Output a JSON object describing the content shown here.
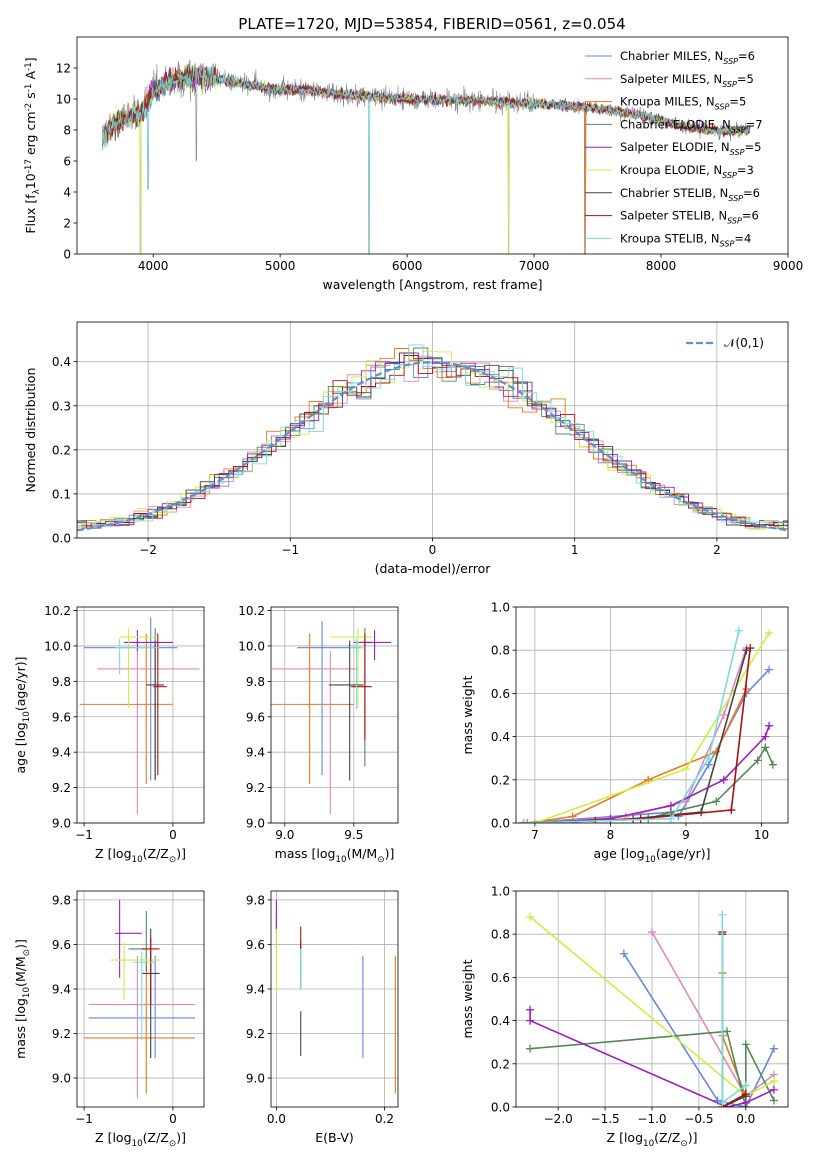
{
  "title": "PLATE=1720, MJD=53854, FIBERID=0561, z=0.054",
  "colors": [
    "#6688dd",
    "#e088bb",
    "#e87820",
    "#558855",
    "#9922bb",
    "#ccee44",
    "#444444",
    "#aa1111",
    "#77dddd"
  ],
  "series_names": [
    "Chabrier MILES, N$_{SSP}$=6",
    "Salpeter MILES, N$_{SSP}$=5",
    "Kroupa MILES, N$_{SSP}$=5",
    "Chabrier ELODIE, N$_{SSP}$=7",
    "Salpeter ELODIE, N$_{SSP}$=5",
    "Kroupa ELODIE, N$_{SSP}$=3",
    "Chabrier STELIB, N$_{SSP}$=6",
    "Salpeter STELIB, N$_{SSP}$=6",
    "Kroupa STELIB, N$_{SSP}$=4"
  ],
  "chart_data": [
    {
      "id": "spectrum",
      "type": "line",
      "title": "PLATE=1720, MJD=53854, FIBERID=0561, z=0.054",
      "xlabel": "wavelength [Angstrom, rest frame]",
      "ylabel": "Flux [f$_\\lambda$10$^{-17}$ erg cm$^{-2}$ s$^{-1}$ A$^{-1}$]",
      "xlim": [
        3400,
        9000
      ],
      "ylim": [
        0,
        14
      ],
      "xticks": [
        4000,
        5000,
        6000,
        7000,
        8000,
        9000
      ],
      "yticks": [
        0,
        2,
        4,
        6,
        8,
        10,
        12
      ],
      "grid": false,
      "legend": "upper right",
      "data_wavelength_range": [
        3600,
        8700
      ],
      "continuum": [
        [
          3600,
          7.5
        ],
        [
          3700,
          8.4
        ],
        [
          3800,
          8.9
        ],
        [
          3900,
          9.0
        ],
        [
          4000,
          10.4
        ],
        [
          4100,
          11.0
        ],
        [
          4200,
          11.3
        ],
        [
          4400,
          11.5
        ],
        [
          4700,
          11.0
        ],
        [
          5000,
          10.6
        ],
        [
          5200,
          10.6
        ],
        [
          5500,
          10.3
        ],
        [
          6000,
          10.0
        ],
        [
          6500,
          9.9
        ],
        [
          7000,
          9.7
        ],
        [
          7400,
          9.5
        ],
        [
          7800,
          9.0
        ],
        [
          8200,
          8.2
        ],
        [
          8500,
          7.9
        ],
        [
          8700,
          8.0
        ]
      ],
      "dips": [
        [
          3900,
          0
        ],
        [
          3960,
          4.2
        ],
        [
          4340,
          6.0
        ],
        [
          5700,
          0
        ],
        [
          6800,
          0
        ],
        [
          7400,
          0
        ]
      ]
    },
    {
      "id": "residuals",
      "type": "histogram",
      "xlabel": "(data-model)/error",
      "ylabel": "Normed distribution",
      "xlim": [
        -2.5,
        2.5
      ],
      "ylim": [
        0,
        0.49
      ],
      "xticks": [
        -2,
        -1,
        0,
        1,
        2
      ],
      "yticks": [
        0.0,
        0.1,
        0.2,
        0.3,
        0.4
      ],
      "grid": true,
      "legend": "upper right",
      "reference_label": "$\\mathcal{N}(0,1)$",
      "bin_width": 0.1
    },
    {
      "id": "age-vs-Z",
      "type": "errorbar",
      "xlabel": "Z [log$_{10}$(Z/Z$_\\odot$)]",
      "ylabel": "age  [log$_{10}$(age/yr)]",
      "xlim": [
        -1.08,
        0.35
      ],
      "ylim": [
        9.0,
        10.22
      ],
      "xticks": [
        -1,
        0
      ],
      "yticks": [
        9.0,
        9.2,
        9.4,
        9.6,
        9.8,
        10.0,
        10.2
      ],
      "grid": true,
      "points": [
        {
          "x": -0.25,
          "xerr": [
            0.75,
            0.3
          ],
          "y": 9.99,
          "yerr": [
            0.75,
            0.17
          ]
        },
        {
          "x": -0.4,
          "xerr": [
            0.45,
            0.7
          ],
          "y": 9.87,
          "yerr": [
            0.82,
            0.1
          ]
        },
        {
          "x": -0.3,
          "xerr": [
            0.75,
            0.3
          ],
          "y": 9.67,
          "yerr": [
            0.45,
            0.4
          ]
        },
        {
          "x": -0.2,
          "xerr": [
            0.05,
            0.03
          ],
          "y": 10.02,
          "yerr": [
            0.77,
            0.08
          ]
        },
        {
          "x": -0.4,
          "xerr": [
            0.15,
            0.4
          ],
          "y": 10.02,
          "yerr": [
            0.05,
            0.07
          ]
        },
        {
          "x": -0.5,
          "xerr": [
            0.1,
            0.3
          ],
          "y": 10.05,
          "yerr": [
            0.4,
            0.05
          ]
        },
        {
          "x": -0.2,
          "xerr": [
            0.1,
            0.1
          ],
          "y": 9.78,
          "yerr": [
            0.54,
            0.25
          ]
        },
        {
          "x": -0.17,
          "xerr": [
            0.05,
            0.1
          ],
          "y": 9.77,
          "yerr": [
            0.5,
            0.3
          ]
        },
        {
          "x": -0.6,
          "xerr": [
            0.05,
            0.45
          ],
          "y": 9.99,
          "yerr": [
            0.15,
            0.05
          ]
        }
      ]
    },
    {
      "id": "age-vs-mass",
      "type": "errorbar",
      "xlabel": "mass [log$_{10}$(M/M$_\\odot$)]",
      "ylabel": "",
      "xlim": [
        8.9,
        9.82
      ],
      "ylim": [
        9.0,
        10.22
      ],
      "xticks": [
        9.0,
        9.5
      ],
      "yticks": [
        9.0,
        9.2,
        9.4,
        9.6,
        9.8,
        10.0,
        10.2
      ],
      "grid": true,
      "points": [
        {
          "x": 9.27,
          "xerr": [
            0.18,
            0.28
          ],
          "y": 9.99,
          "yerr": [
            0.72,
            0.15
          ]
        },
        {
          "x": 9.33,
          "xerr": [
            0.42,
            0.2
          ],
          "y": 9.87,
          "yerr": [
            0.82,
            0.1
          ]
        },
        {
          "x": 9.18,
          "xerr": [
            0.28,
            0.32
          ],
          "y": 9.67,
          "yerr": [
            0.45,
            0.4
          ]
        },
        {
          "x": 9.58,
          "xerr": [
            0.05,
            0.05
          ],
          "y": 10.02,
          "yerr": [
            0.7,
            0.08
          ]
        },
        {
          "x": 9.65,
          "xerr": [
            0.15,
            0.12
          ],
          "y": 10.02,
          "yerr": [
            0.1,
            0.07
          ]
        },
        {
          "x": 9.53,
          "xerr": [
            0.2,
            0.1
          ],
          "y": 10.05,
          "yerr": [
            0.4,
            0.05
          ]
        },
        {
          "x": 9.47,
          "xerr": [
            0.15,
            0.1
          ],
          "y": 9.78,
          "yerr": [
            0.54,
            0.25
          ]
        },
        {
          "x": 9.58,
          "xerr": [
            0.1,
            0.05
          ],
          "y": 9.77,
          "yerr": [
            0.3,
            0.3
          ]
        },
        {
          "x": 9.52,
          "xerr": [
            0.05,
            0.05
          ],
          "y": 9.99,
          "yerr": [
            0.35,
            0.05
          ]
        }
      ]
    },
    {
      "id": "massweight-vs-age",
      "type": "line",
      "xlabel": "age  [log$_{10}$(age/yr)]",
      "ylabel": "mass weight",
      "xlim": [
        6.75,
        10.35
      ],
      "ylim": [
        0,
        1.0
      ],
      "xticks": [
        7,
        8,
        9,
        10
      ],
      "yticks": [
        0.0,
        0.2,
        0.4,
        0.6,
        0.8,
        1.0
      ],
      "grid": true,
      "series": [
        [
          [
            6.85,
            0.0
          ],
          [
            8.8,
            0.05
          ],
          [
            8.9,
            0.03
          ],
          [
            9.3,
            0.27
          ],
          [
            9.8,
            0.6
          ],
          [
            10.1,
            0.71
          ]
        ],
        [
          [
            7.0,
            0.0
          ],
          [
            8.2,
            0.03
          ],
          [
            9.0,
            0.1
          ],
          [
            9.5,
            0.5
          ],
          [
            9.8,
            0.81
          ]
        ],
        [
          [
            6.9,
            0.0
          ],
          [
            7.5,
            0.03
          ],
          [
            8.5,
            0.2
          ],
          [
            9.4,
            0.33
          ],
          [
            9.8,
            0.62
          ]
        ],
        [
          [
            7.0,
            0.0
          ],
          [
            8.5,
            0.02
          ],
          [
            8.8,
            0.05
          ],
          [
            9.4,
            0.1
          ],
          [
            9.95,
            0.29
          ],
          [
            10.05,
            0.35
          ],
          [
            10.15,
            0.27
          ]
        ],
        [
          [
            7.0,
            0.0
          ],
          [
            8.0,
            0.02
          ],
          [
            8.8,
            0.08
          ],
          [
            9.5,
            0.2
          ],
          [
            10.05,
            0.4
          ],
          [
            10.1,
            0.45
          ]
        ],
        [
          [
            7.0,
            0.0
          ],
          [
            9.0,
            0.25
          ],
          [
            10.1,
            0.88
          ]
        ],
        [
          [
            6.85,
            0.0
          ],
          [
            7.8,
            0.01
          ],
          [
            8.3,
            0.02
          ],
          [
            9.2,
            0.05
          ],
          [
            9.8,
            0.8
          ]
        ],
        [
          [
            6.85,
            0.0
          ],
          [
            7.8,
            0.01
          ],
          [
            8.4,
            0.02
          ],
          [
            9.6,
            0.06
          ],
          [
            9.85,
            0.81
          ]
        ],
        [
          [
            6.85,
            0.0
          ],
          [
            8.8,
            0.02
          ],
          [
            9.3,
            0.3
          ],
          [
            9.7,
            0.89
          ]
        ]
      ]
    },
    {
      "id": "mass-vs-Z",
      "type": "errorbar",
      "xlabel": "Z [log$_{10}$(Z/Z$_\\odot$)]",
      "ylabel": "mass [log$_{10}$(M/M$_\\odot$)]",
      "xlim": [
        -1.08,
        0.35
      ],
      "ylim": [
        8.87,
        9.84
      ],
      "xticks": [
        -1,
        0
      ],
      "yticks": [
        9.0,
        9.2,
        9.4,
        9.6,
        9.8
      ],
      "grid": true,
      "points": [
        {
          "x": -0.2,
          "xerr": [
            0.75,
            0.45
          ],
          "y": 9.27,
          "yerr": [
            0.18,
            0.28
          ]
        },
        {
          "x": -0.4,
          "xerr": [
            0.55,
            0.65
          ],
          "y": 9.33,
          "yerr": [
            0.42,
            0.22
          ]
        },
        {
          "x": -0.3,
          "xerr": [
            0.7,
            0.55
          ],
          "y": 9.18,
          "yerr": [
            0.25,
            0.35
          ]
        },
        {
          "x": -0.3,
          "xerr": [
            0.2,
            0.1
          ],
          "y": 9.58,
          "yerr": [
            0.1,
            0.17
          ]
        },
        {
          "x": -0.6,
          "xerr": [
            0.05,
            0.25
          ],
          "y": 9.65,
          "yerr": [
            0.2,
            0.15
          ]
        },
        {
          "x": -0.55,
          "xerr": [
            0.15,
            0.4
          ],
          "y": 9.53,
          "yerr": [
            0.18,
            0.08
          ]
        },
        {
          "x": -0.25,
          "xerr": [
            0.1,
            0.1
          ],
          "y": 9.47,
          "yerr": [
            0.38,
            0.2
          ]
        },
        {
          "x": -0.25,
          "xerr": [
            0.1,
            0.1
          ],
          "y": 9.58,
          "yerr": [
            0.25,
            0.05
          ]
        },
        {
          "x": -0.35,
          "xerr": [
            0.1,
            0.15
          ],
          "y": 9.52,
          "yerr": [
            0.35,
            0.05
          ]
        }
      ]
    },
    {
      "id": "mass-vs-EBV",
      "type": "errorbar",
      "xlabel": "E(B-V)",
      "ylabel": "",
      "xlim": [
        -0.01,
        0.225
      ],
      "ylim": [
        8.87,
        9.84
      ],
      "xticks": [
        0.0,
        0.2
      ],
      "yticks": [
        9.0,
        9.2,
        9.4,
        9.6,
        9.8
      ],
      "grid": true,
      "points": [
        {
          "x": 0.16,
          "y": 9.32,
          "yerr": [
            0.23,
            0.23
          ]
        },
        {
          "x": 0.0,
          "y": 9.65,
          "yerr": [
            0.08,
            0.1
          ]
        },
        {
          "x": 0.22,
          "y": 9.18,
          "yerr": [
            0.25,
            0.37
          ]
        },
        {
          "x": 0.045,
          "y": 9.52,
          "yerr": [
            0.12,
            0.1
          ]
        },
        {
          "x": 0.0,
          "y": 9.7,
          "yerr": [
            0.05,
            0.1
          ]
        },
        {
          "x": 0.0,
          "y": 9.5,
          "yerr": [
            0.12,
            0.17
          ]
        },
        {
          "x": 0.045,
          "y": 9.3,
          "yerr": [
            0.2,
            0.0
          ]
        },
        {
          "x": 0.045,
          "y": 9.58,
          "yerr": [
            0.0,
            0.1
          ]
        },
        {
          "x": 0.045,
          "y": 9.5,
          "yerr": [
            0.1,
            0.08
          ]
        }
      ]
    },
    {
      "id": "massweight-vs-Z",
      "type": "line",
      "xlabel": "Z [log$_{10}$(Z/Z$_\\odot$)]",
      "ylabel": "mass weight",
      "xlim": [
        -2.45,
        0.45
      ],
      "ylim": [
        0,
        1.0
      ],
      "xticks": [
        -2.0,
        -1.5,
        -1.0,
        -0.5,
        0.0
      ],
      "yticks": [
        0.0,
        0.2,
        0.4,
        0.6,
        0.8,
        1.0
      ],
      "grid": true,
      "series": [
        [
          [
            -1.3,
            0.71
          ],
          [
            -0.3,
            0.03
          ],
          [
            0.0,
            0.0
          ],
          [
            0.3,
            0.27
          ]
        ],
        [
          [
            -1.0,
            0.81
          ],
          [
            0.0,
            0.05
          ],
          [
            0.3,
            0.15
          ]
        ],
        [
          [
            -0.25,
            0.62
          ],
          [
            -0.25,
            0.33
          ],
          [
            0.0,
            0.05
          ]
        ],
        [
          [
            -2.3,
            0.27
          ],
          [
            -0.2,
            0.35
          ],
          [
            0.0,
            0.0
          ],
          [
            0.0,
            0.29
          ],
          [
            0.3,
            0.03
          ]
        ],
        [
          [
            -2.3,
            0.45
          ],
          [
            -2.3,
            0.4
          ],
          [
            -0.2,
            0.0
          ],
          [
            0.0,
            0.02
          ],
          [
            0.3,
            0.08
          ]
        ],
        [
          [
            -2.3,
            0.88
          ],
          [
            0.0,
            0.05
          ],
          [
            0.3,
            0.12
          ]
        ],
        [
          [
            -0.25,
            0.8
          ],
          [
            -0.25,
            0.0
          ],
          [
            0.0,
            0.05
          ]
        ],
        [
          [
            -0.25,
            0.81
          ],
          [
            -0.25,
            0.0
          ],
          [
            0.0,
            0.06
          ]
        ],
        [
          [
            -0.25,
            0.89
          ],
          [
            -0.25,
            0.02
          ],
          [
            0.0,
            0.1
          ]
        ]
      ]
    }
  ]
}
